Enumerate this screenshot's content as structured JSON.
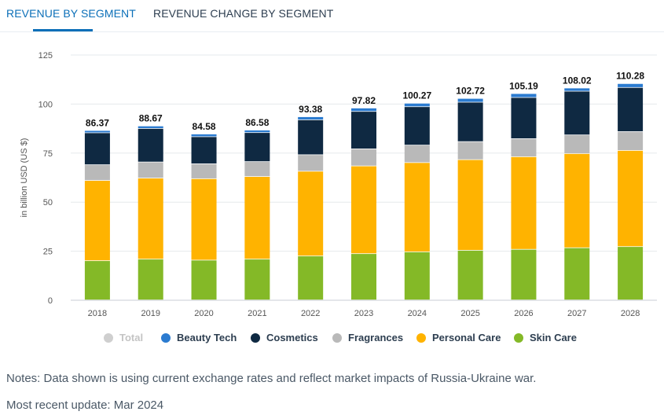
{
  "tabs": {
    "active": "REVENUE BY SEGMENT",
    "inactive": "REVENUE CHANGE BY SEGMENT"
  },
  "chart_data": {
    "type": "bar",
    "stacked": true,
    "categories": [
      "2018",
      "2019",
      "2020",
      "2021",
      "2022",
      "2023",
      "2024",
      "2025",
      "2026",
      "2027",
      "2028"
    ],
    "ylabel": "in billion USD (US $)",
    "ylim": [
      0,
      125
    ],
    "yticks": [
      0,
      25,
      50,
      75,
      100,
      125
    ],
    "totals": [
      "86.37",
      "88.67",
      "84.58",
      "86.58",
      "93.38",
      "97.82",
      "100.27",
      "102.72",
      "105.19",
      "108.02",
      "110.28"
    ],
    "series": [
      {
        "name": "Skin Care",
        "color": "#84b927",
        "values": [
          20.0,
          20.8,
          20.3,
          20.8,
          22.4,
          23.6,
          24.5,
          25.3,
          25.8,
          26.6,
          27.2
        ]
      },
      {
        "name": "Personal Care",
        "color": "#ffb300",
        "values": [
          40.9,
          41.3,
          41.5,
          42.1,
          43.2,
          44.7,
          45.5,
          46.2,
          47.2,
          48.0,
          49.0
        ]
      },
      {
        "name": "Fragrances",
        "color": "#b9b9b9",
        "values": [
          8.0,
          8.2,
          7.6,
          7.6,
          8.4,
          8.7,
          8.9,
          9.2,
          9.2,
          9.5,
          9.6
        ]
      },
      {
        "name": "Cosmetics",
        "color": "#0f2942",
        "values": [
          16.3,
          17.1,
          13.8,
          14.8,
          17.8,
          19.1,
          19.6,
          20.1,
          21.0,
          22.3,
          22.5
        ]
      },
      {
        "name": "Beauty Tech",
        "color": "#2b7bd0",
        "values": [
          1.17,
          1.27,
          1.38,
          1.28,
          1.58,
          1.72,
          1.77,
          1.92,
          1.99,
          1.62,
          1.98
        ]
      }
    ],
    "legend": [
      {
        "name": "Total",
        "color": "#cfcfcf",
        "muted": true
      },
      {
        "name": "Beauty Tech",
        "color": "#2b7bd0",
        "muted": false
      },
      {
        "name": "Cosmetics",
        "color": "#0f2942",
        "muted": false
      },
      {
        "name": "Fragrances",
        "color": "#b9b9b9",
        "muted": false
      },
      {
        "name": "Personal Care",
        "color": "#ffb300",
        "muted": false
      },
      {
        "name": "Skin Care",
        "color": "#84b927",
        "muted": false
      }
    ]
  },
  "notes": "Notes: Data shown is using current exchange rates and reflect market impacts of Russia-Ukraine war.",
  "update": "Most recent update: Mar 2024"
}
